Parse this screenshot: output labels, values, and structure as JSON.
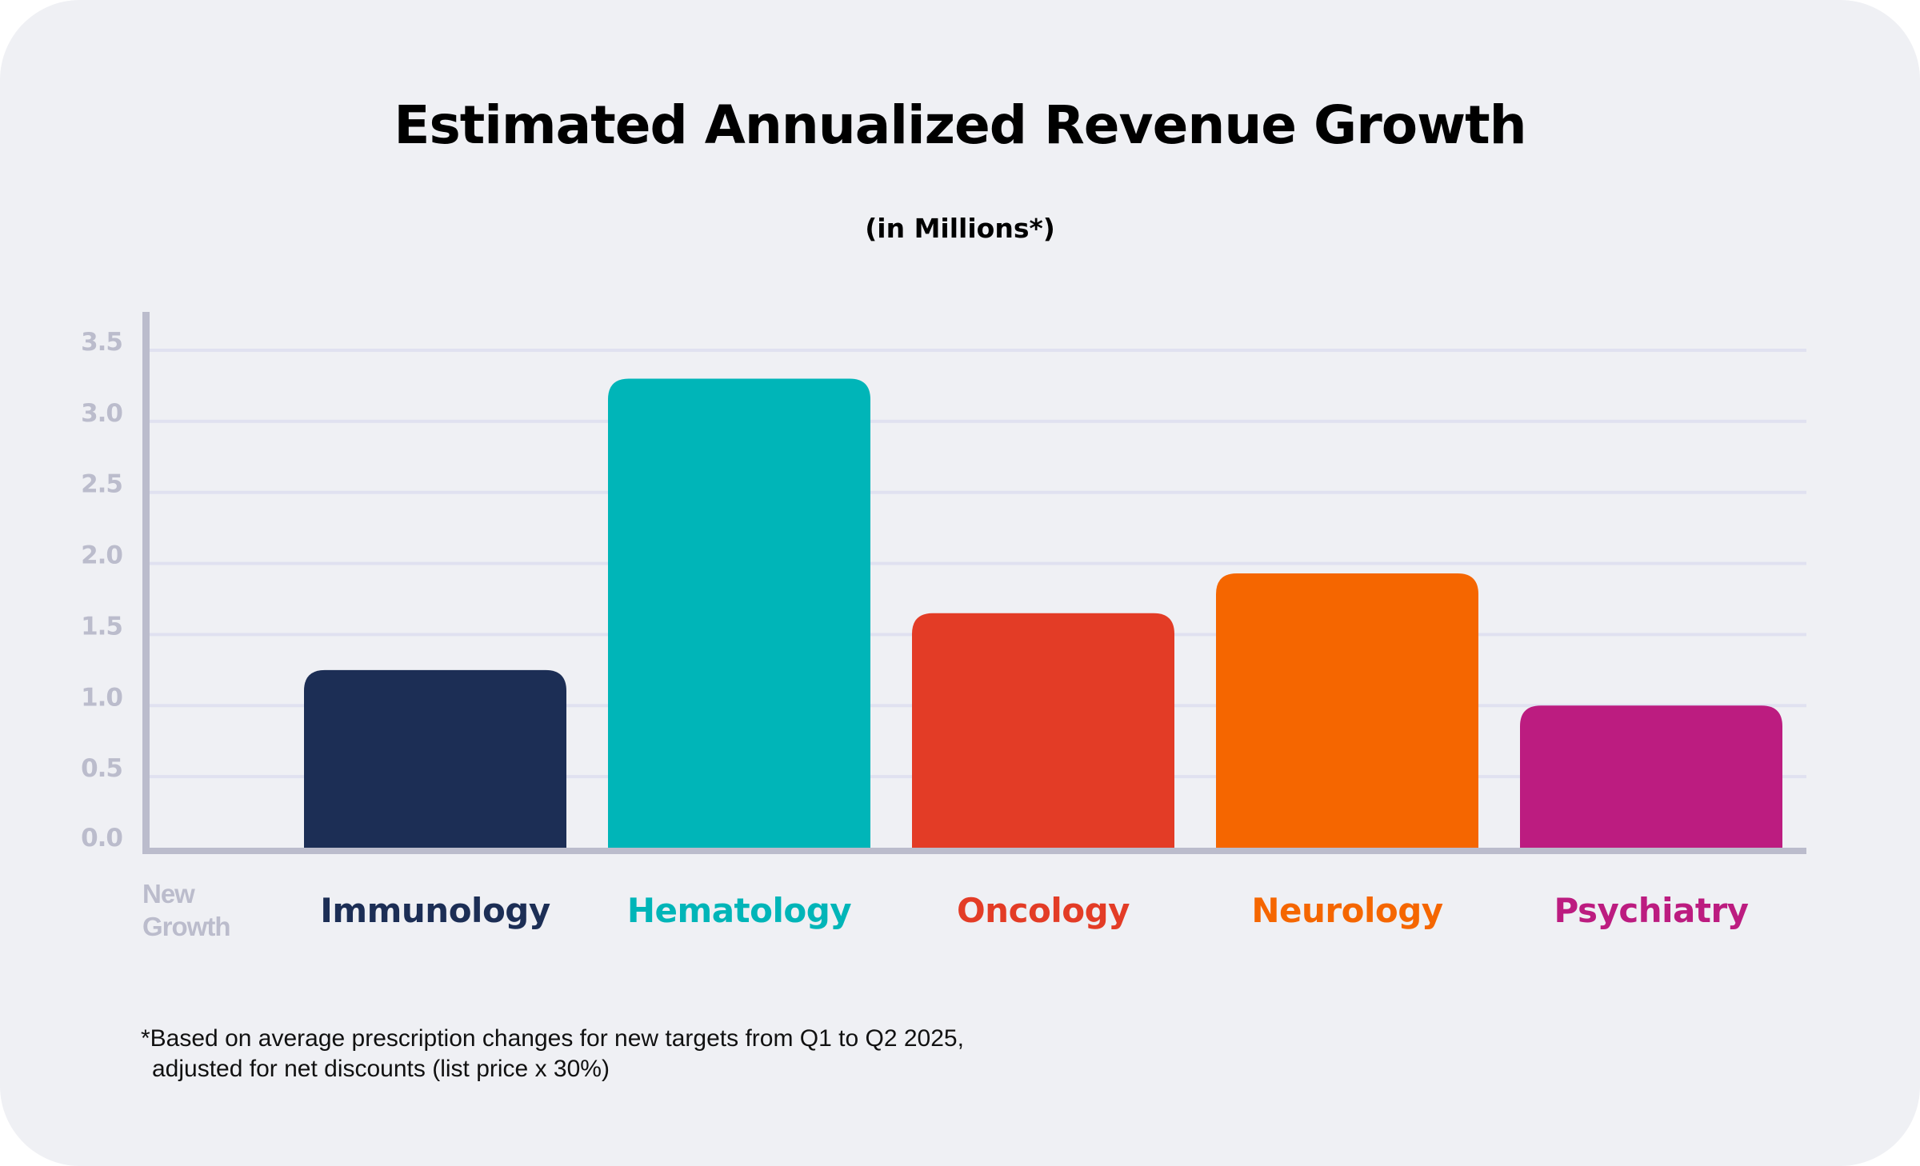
{
  "chart_data": {
    "type": "bar",
    "title": "Estimated Annualized Revenue Growth",
    "subtitle": "(in Millions*)",
    "xlabel": "New Growth",
    "ylabel": "",
    "ylim": [
      0,
      3.5
    ],
    "yticks": [
      "0.0",
      "0.5",
      "1.0",
      "1.5",
      "2.0",
      "2.5",
      "3.0",
      "3.5"
    ],
    "ytick_values": [
      0,
      0.5,
      1.0,
      1.5,
      2.0,
      2.5,
      3.0,
      3.5
    ],
    "grid": true,
    "categories": [
      "Immunology",
      "Hematology",
      "Oncology",
      "Neurology",
      "Psychiatry"
    ],
    "values": [
      1.25,
      3.3,
      1.65,
      1.93,
      1.0
    ],
    "colors": [
      "#1c2e55",
      "#00b5b8",
      "#e33c26",
      "#f56600",
      "#bc1c80"
    ],
    "footnote": [
      "*Based on average prescription changes for new targets from Q1 to Q2 2025,",
      "adjusted for net discounts (list price x 30%)"
    ]
  },
  "xlabel_lines": [
    "New",
    "Growth"
  ],
  "colors": {
    "background": "#eff0f4",
    "axis": "#bbbccc",
    "gridline": "#e0e1f0",
    "tick_text": "#bbbccc"
  }
}
